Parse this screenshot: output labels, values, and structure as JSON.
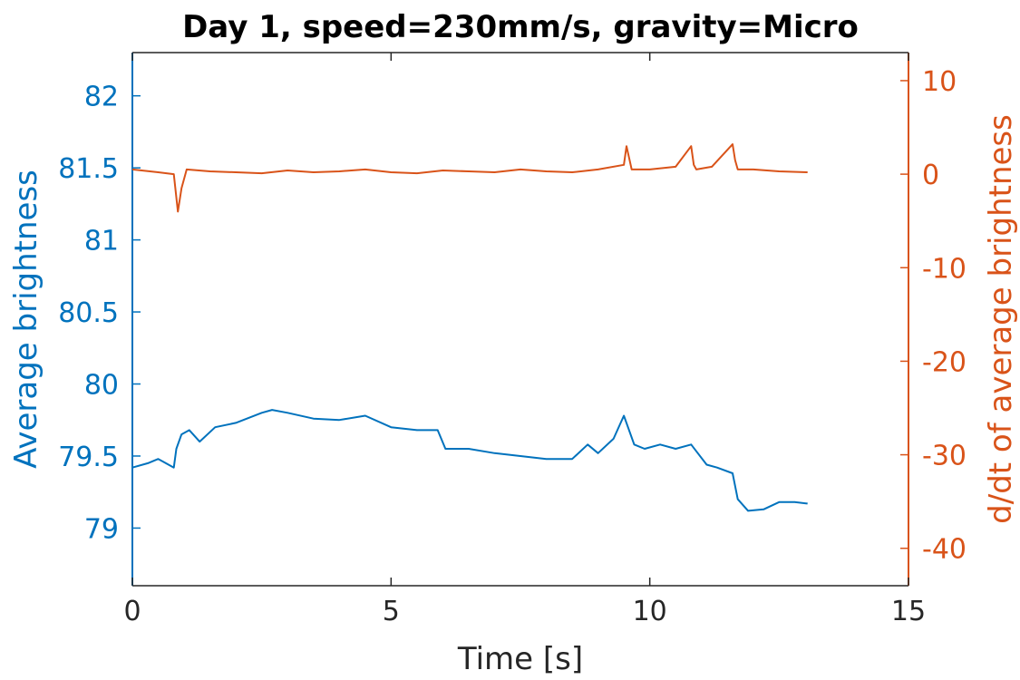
{
  "chart_data": {
    "type": "line",
    "title": "Day 1, speed=230mm/s, gravity=Micro",
    "xlabel": "Time [s]",
    "ylabel_left": "Average brightness",
    "ylabel_right": "d/dt of average brightness",
    "xlim": [
      0,
      15
    ],
    "ylim_left": [
      78.6,
      82.3
    ],
    "ylim_right": [
      -44,
      13
    ],
    "x_ticks": [
      "0",
      "5",
      "10",
      "15"
    ],
    "y_left_ticks": [
      "79",
      "79.5",
      "80",
      "80.5",
      "81",
      "81.5",
      "82"
    ],
    "y_right_ticks": [
      "-40",
      "-30",
      "-20",
      "-10",
      "0",
      "10"
    ],
    "colors": {
      "left": "#0072BD",
      "right": "#D95319",
      "axis_x": "#262626"
    },
    "series": [
      {
        "name": "Average brightness",
        "axis": "left",
        "x": [
          0,
          0.3,
          0.5,
          0.8,
          0.85,
          0.95,
          1.1,
          1.3,
          1.6,
          2.0,
          2.5,
          2.7,
          3.0,
          3.5,
          4.0,
          4.5,
          5.0,
          5.5,
          5.9,
          6.05,
          6.5,
          7.0,
          7.5,
          8.0,
          8.5,
          8.8,
          9.0,
          9.3,
          9.5,
          9.7,
          9.9,
          10.2,
          10.5,
          10.8,
          11.1,
          11.3,
          11.6,
          11.7,
          11.9,
          12.2,
          12.5,
          12.8,
          13.05
        ],
        "y": [
          79.42,
          79.45,
          79.48,
          79.42,
          79.55,
          79.65,
          79.68,
          79.6,
          79.7,
          79.73,
          79.8,
          79.82,
          79.8,
          79.76,
          79.75,
          79.78,
          79.7,
          79.68,
          79.68,
          79.55,
          79.55,
          79.52,
          79.5,
          79.48,
          79.48,
          79.58,
          79.52,
          79.62,
          79.78,
          79.58,
          79.55,
          79.58,
          79.55,
          79.58,
          79.44,
          79.42,
          79.38,
          79.2,
          79.12,
          79.13,
          79.18,
          79.18,
          79.17
        ]
      },
      {
        "name": "d/dt of average brightness",
        "axis": "right",
        "x": [
          0,
          0.5,
          0.8,
          0.88,
          0.95,
          1.05,
          1.5,
          2.0,
          2.5,
          3.0,
          3.5,
          4.0,
          4.5,
          5.0,
          5.5,
          6.0,
          6.5,
          7.0,
          7.5,
          8.0,
          8.5,
          9.0,
          9.5,
          9.55,
          9.65,
          10.0,
          10.5,
          10.8,
          10.85,
          10.9,
          11.2,
          11.6,
          11.65,
          11.7,
          12.0,
          12.5,
          13.05
        ],
        "y": [
          0.5,
          0.2,
          0.0,
          -4.0,
          -1.5,
          0.5,
          0.3,
          0.2,
          0.1,
          0.4,
          0.2,
          0.3,
          0.5,
          0.2,
          0.1,
          0.4,
          0.3,
          0.2,
          0.5,
          0.3,
          0.2,
          0.5,
          1.0,
          3.0,
          0.5,
          0.5,
          0.8,
          3.0,
          1.0,
          0.5,
          0.8,
          3.2,
          1.5,
          0.5,
          0.5,
          0.3,
          0.2
        ]
      }
    ]
  }
}
